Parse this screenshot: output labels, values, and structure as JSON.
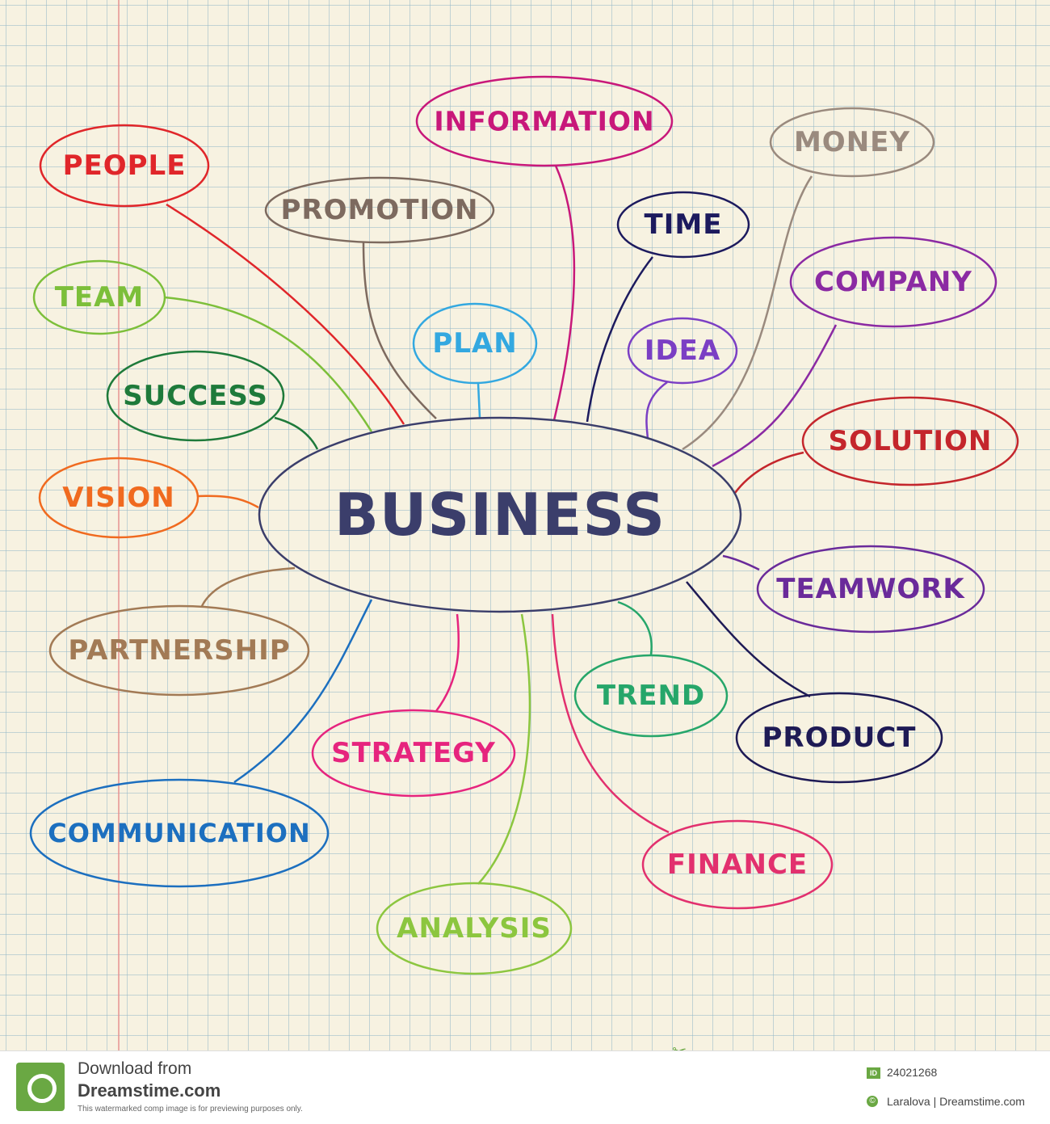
{
  "diagram": {
    "center": {
      "label": "BUSINESS",
      "color": "#3b3e6b"
    },
    "nodes": [
      {
        "id": "people",
        "label": "PEOPLE",
        "color": "#e0262a"
      },
      {
        "id": "information",
        "label": "INFORMATION",
        "color": "#c8187a"
      },
      {
        "id": "money",
        "label": "MONEY",
        "color": "#9a8a7e"
      },
      {
        "id": "promotion",
        "label": "PROMOTION",
        "color": "#7d6a5f"
      },
      {
        "id": "time",
        "label": "TIME",
        "color": "#1c1a5e"
      },
      {
        "id": "team",
        "label": "TEAM",
        "color": "#7cbf3a"
      },
      {
        "id": "company",
        "label": "COMPANY",
        "color": "#8b2aa3"
      },
      {
        "id": "plan",
        "label": "PLAN",
        "color": "#33a8e0"
      },
      {
        "id": "idea",
        "label": "IDEA",
        "color": "#7b3fc4"
      },
      {
        "id": "success",
        "label": "SUCCESS",
        "color": "#1e7a3a"
      },
      {
        "id": "solution",
        "label": "SOLUTION",
        "color": "#c4262c"
      },
      {
        "id": "vision",
        "label": "VISION",
        "color": "#f06a1f"
      },
      {
        "id": "teamwork",
        "label": "TEAMWORK",
        "color": "#6a2a9a"
      },
      {
        "id": "partnership",
        "label": "PARTNERSHIP",
        "color": "#a27a55"
      },
      {
        "id": "trend",
        "label": "TREND",
        "color": "#26a66a"
      },
      {
        "id": "strategy",
        "label": "STRATEGY",
        "color": "#e6247e"
      },
      {
        "id": "product",
        "label": "PRODUCT",
        "color": "#1e1a55"
      },
      {
        "id": "communication",
        "label": "COMMUNICATION",
        "color": "#1c6fbf"
      },
      {
        "id": "finance",
        "label": "FINANCE",
        "color": "#e2306e"
      },
      {
        "id": "analysis",
        "label": "ANALYSIS",
        "color": "#8cc63f"
      }
    ]
  },
  "footer": {
    "download_label": "Download from",
    "site": "Dreamstime.com",
    "note": "This watermarked comp image is for previewing purposes only.",
    "id_badge": "ID",
    "image_id": "24021268",
    "copyright_symbol": "©",
    "credit": "Laralova | Dreamstime.com",
    "icon": "scissors-icon"
  }
}
